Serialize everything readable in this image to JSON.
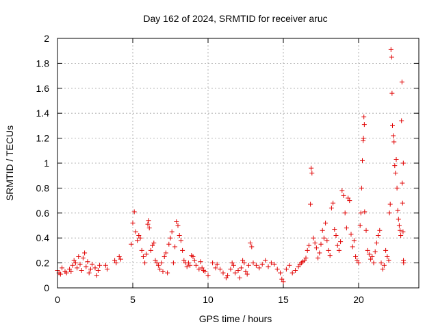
{
  "chart_data": {
    "type": "scatter",
    "title": "Day 162 of 2024, SRMTID for receiver aruc",
    "xlabel": "GPS time / hours",
    "ylabel": "SRMTID / TECUs",
    "xlim": [
      0,
      24
    ],
    "ylim": [
      0,
      2
    ],
    "xticks": [
      0,
      5,
      10,
      15,
      20
    ],
    "xtick_labels": [
      "0",
      "5",
      "10",
      "15",
      "20"
    ],
    "yticks": [
      0,
      0.2,
      0.4,
      0.6,
      0.8,
      1,
      1.2,
      1.4,
      1.6,
      1.8,
      2
    ],
    "ytick_labels": [
      "0",
      "0.2",
      "0.4",
      "0.6",
      "0.8",
      "1",
      "1.2",
      "1.4",
      "1.6",
      "1.8",
      "2"
    ],
    "grid": true,
    "marker": "+",
    "color": "#e00000",
    "series": [
      {
        "name": "SRMTID",
        "points": [
          [
            0.0,
            0.14
          ],
          [
            0.1,
            0.12
          ],
          [
            0.2,
            0.11
          ],
          [
            0.3,
            0.16
          ],
          [
            0.5,
            0.13
          ],
          [
            0.6,
            0.12
          ],
          [
            0.8,
            0.15
          ],
          [
            0.9,
            0.13
          ],
          [
            1.0,
            0.18
          ],
          [
            1.1,
            0.22
          ],
          [
            1.2,
            0.2
          ],
          [
            1.3,
            0.16
          ],
          [
            1.4,
            0.25
          ],
          [
            1.5,
            0.19
          ],
          [
            1.6,
            0.14
          ],
          [
            1.7,
            0.24
          ],
          [
            1.8,
            0.28
          ],
          [
            1.9,
            0.17
          ],
          [
            2.0,
            0.21
          ],
          [
            2.1,
            0.12
          ],
          [
            2.2,
            0.15
          ],
          [
            2.3,
            0.19
          ],
          [
            2.5,
            0.16
          ],
          [
            2.6,
            0.1
          ],
          [
            2.7,
            0.14
          ],
          [
            2.8,
            0.18
          ],
          [
            3.2,
            0.18
          ],
          [
            3.3,
            0.15
          ],
          [
            3.8,
            0.22
          ],
          [
            3.9,
            0.2
          ],
          [
            4.1,
            0.25
          ],
          [
            4.2,
            0.23
          ],
          [
            4.9,
            0.35
          ],
          [
            5.0,
            0.52
          ],
          [
            5.1,
            0.61
          ],
          [
            5.2,
            0.45
          ],
          [
            5.3,
            0.38
          ],
          [
            5.4,
            0.42
          ],
          [
            5.5,
            0.4
          ],
          [
            5.6,
            0.3
          ],
          [
            5.7,
            0.25
          ],
          [
            5.8,
            0.2
          ],
          [
            5.9,
            0.27
          ],
          [
            6.0,
            0.51
          ],
          [
            6.05,
            0.54
          ],
          [
            6.1,
            0.48
          ],
          [
            6.2,
            0.3
          ],
          [
            6.3,
            0.34
          ],
          [
            6.4,
            0.36
          ],
          [
            6.5,
            0.22
          ],
          [
            6.6,
            0.2
          ],
          [
            6.7,
            0.18
          ],
          [
            6.8,
            0.15
          ],
          [
            6.9,
            0.2
          ],
          [
            7.0,
            0.13
          ],
          [
            7.1,
            0.25
          ],
          [
            7.2,
            0.28
          ],
          [
            7.3,
            0.12
          ],
          [
            7.4,
            0.35
          ],
          [
            7.5,
            0.4
          ],
          [
            7.6,
            0.45
          ],
          [
            7.7,
            0.2
          ],
          [
            7.8,
            0.33
          ],
          [
            7.9,
            0.53
          ],
          [
            8.0,
            0.5
          ],
          [
            8.1,
            0.42
          ],
          [
            8.2,
            0.38
          ],
          [
            8.3,
            0.3
          ],
          [
            8.4,
            0.22
          ],
          [
            8.5,
            0.2
          ],
          [
            8.6,
            0.17
          ],
          [
            8.7,
            0.2
          ],
          [
            8.8,
            0.18
          ],
          [
            8.9,
            0.26
          ],
          [
            9.0,
            0.25
          ],
          [
            9.1,
            0.22
          ],
          [
            9.2,
            0.18
          ],
          [
            9.4,
            0.15
          ],
          [
            9.5,
            0.21
          ],
          [
            9.6,
            0.16
          ],
          [
            9.7,
            0.14
          ],
          [
            9.8,
            0.13
          ],
          [
            10.0,
            0.1
          ],
          [
            10.3,
            0.2
          ],
          [
            10.5,
            0.16
          ],
          [
            10.6,
            0.19
          ],
          [
            10.8,
            0.15
          ],
          [
            11.0,
            0.12
          ],
          [
            11.2,
            0.08
          ],
          [
            11.3,
            0.1
          ],
          [
            11.5,
            0.15
          ],
          [
            11.6,
            0.2
          ],
          [
            11.7,
            0.18
          ],
          [
            11.8,
            0.12
          ],
          [
            12.0,
            0.14
          ],
          [
            12.1,
            0.08
          ],
          [
            12.2,
            0.16
          ],
          [
            12.3,
            0.22
          ],
          [
            12.4,
            0.2
          ],
          [
            12.5,
            0.13
          ],
          [
            12.6,
            0.11
          ],
          [
            12.7,
            0.18
          ],
          [
            12.8,
            0.36
          ],
          [
            12.9,
            0.33
          ],
          [
            13.0,
            0.2
          ],
          [
            13.2,
            0.18
          ],
          [
            13.4,
            0.16
          ],
          [
            13.6,
            0.19
          ],
          [
            13.8,
            0.22
          ],
          [
            14.0,
            0.17
          ],
          [
            14.2,
            0.2
          ],
          [
            14.4,
            0.19
          ],
          [
            14.6,
            0.15
          ],
          [
            14.8,
            0.12
          ],
          [
            14.9,
            0.07
          ],
          [
            15.0,
            0.05
          ],
          [
            15.2,
            0.15
          ],
          [
            15.4,
            0.18
          ],
          [
            15.6,
            0.12
          ],
          [
            15.8,
            0.14
          ],
          [
            16.0,
            0.17
          ],
          [
            16.1,
            0.19
          ],
          [
            16.2,
            0.2
          ],
          [
            16.3,
            0.21
          ],
          [
            16.4,
            0.22
          ],
          [
            16.5,
            0.24
          ],
          [
            16.6,
            0.3
          ],
          [
            16.7,
            0.34
          ],
          [
            16.8,
            0.67
          ],
          [
            16.85,
            0.96
          ],
          [
            16.9,
            0.92
          ],
          [
            17.0,
            0.4
          ],
          [
            17.1,
            0.36
          ],
          [
            17.2,
            0.32
          ],
          [
            17.3,
            0.24
          ],
          [
            17.4,
            0.28
          ],
          [
            17.5,
            0.35
          ],
          [
            17.6,
            0.46
          ],
          [
            17.7,
            0.4
          ],
          [
            17.8,
            0.52
          ],
          [
            17.9,
            0.38
          ],
          [
            18.0,
            0.3
          ],
          [
            18.1,
            0.26
          ],
          [
            18.2,
            0.64
          ],
          [
            18.3,
            0.68
          ],
          [
            18.4,
            0.47
          ],
          [
            18.5,
            0.42
          ],
          [
            18.6,
            0.34
          ],
          [
            18.7,
            0.3
          ],
          [
            18.8,
            0.37
          ],
          [
            18.9,
            0.78
          ],
          [
            19.0,
            0.74
          ],
          [
            19.1,
            0.6
          ],
          [
            19.2,
            0.48
          ],
          [
            19.3,
            0.72
          ],
          [
            19.4,
            0.7
          ],
          [
            19.5,
            0.43
          ],
          [
            19.6,
            0.33
          ],
          [
            19.7,
            0.38
          ],
          [
            19.8,
            0.25
          ],
          [
            19.9,
            0.22
          ],
          [
            20.0,
            0.2
          ],
          [
            20.1,
            0.5
          ],
          [
            20.15,
            0.6
          ],
          [
            20.2,
            0.8
          ],
          [
            20.25,
            1.02
          ],
          [
            20.3,
            1.18
          ],
          [
            20.32,
            1.2
          ],
          [
            20.35,
            1.37
          ],
          [
            20.38,
            1.31
          ],
          [
            20.4,
            0.61
          ],
          [
            20.5,
            0.46
          ],
          [
            20.6,
            0.3
          ],
          [
            20.7,
            0.27
          ],
          [
            20.8,
            0.23
          ],
          [
            20.9,
            0.25
          ],
          [
            21.0,
            0.2
          ],
          [
            21.1,
            0.29
          ],
          [
            21.2,
            0.36
          ],
          [
            21.3,
            0.42
          ],
          [
            21.4,
            0.46
          ],
          [
            21.5,
            0.2
          ],
          [
            21.6,
            0.15
          ],
          [
            21.7,
            0.18
          ],
          [
            21.8,
            0.3
          ],
          [
            21.9,
            0.25
          ],
          [
            22.0,
            0.22
          ],
          [
            22.05,
            0.6
          ],
          [
            22.1,
            0.67
          ],
          [
            22.15,
            1.91
          ],
          [
            22.2,
            1.85
          ],
          [
            22.22,
            1.56
          ],
          [
            22.25,
            1.3
          ],
          [
            22.3,
            1.22
          ],
          [
            22.35,
            1.17
          ],
          [
            22.4,
            0.98
          ],
          [
            22.45,
            0.92
          ],
          [
            22.5,
            1.03
          ],
          [
            22.55,
            0.8
          ],
          [
            22.6,
            0.62
          ],
          [
            22.65,
            0.55
          ],
          [
            22.7,
            0.5
          ],
          [
            22.75,
            0.46
          ],
          [
            22.8,
            0.42
          ],
          [
            22.85,
            1.34
          ],
          [
            22.88,
            1.65
          ],
          [
            22.9,
            0.84
          ],
          [
            22.92,
            0.68
          ],
          [
            22.95,
            0.45
          ],
          [
            22.97,
            1.0
          ],
          [
            22.98,
            0.22
          ],
          [
            22.99,
            0.2
          ]
        ]
      }
    ]
  }
}
